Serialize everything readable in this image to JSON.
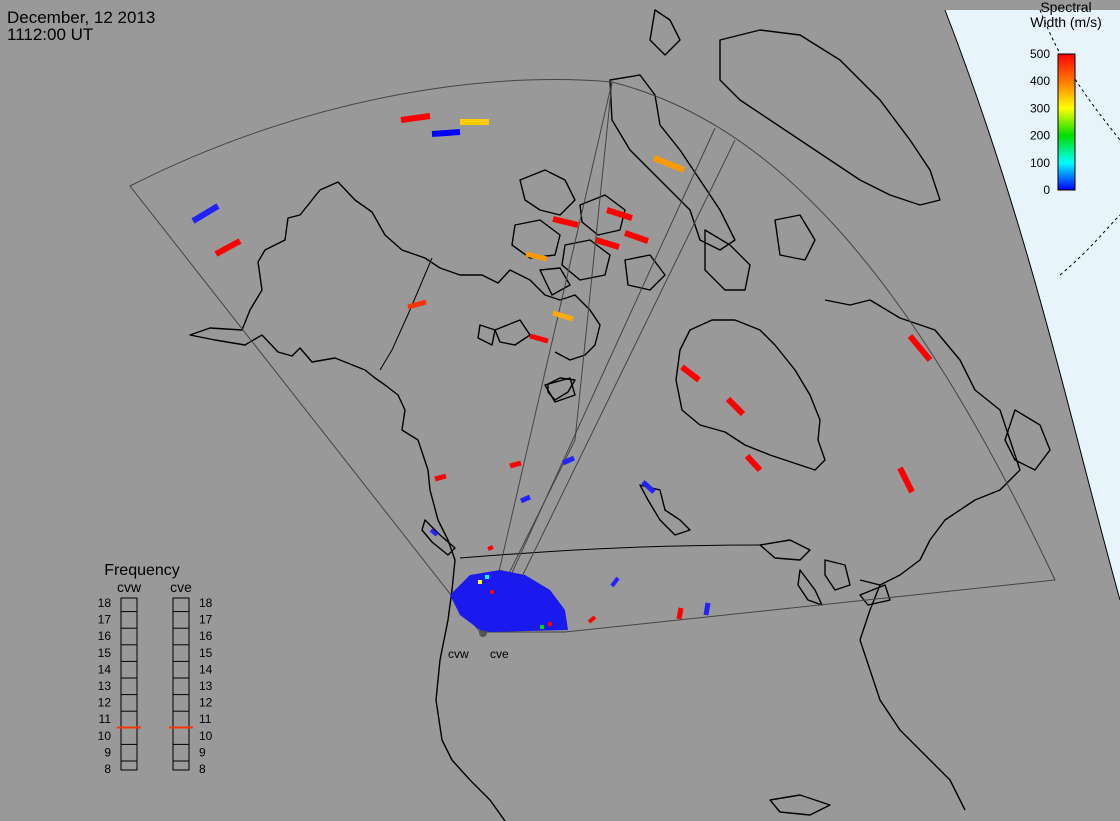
{
  "header": {
    "date": "December, 12 2013",
    "time": "1112:00 UT"
  },
  "colorbar": {
    "title_line1": "Spectral",
    "title_line2": "Width (m/s)",
    "ticks": [
      "500",
      "400",
      "300",
      "200",
      "100",
      "0"
    ],
    "colors": [
      "#ff0000",
      "#ff7a00",
      "#ffff00",
      "#00dd00",
      "#00ffff",
      "#0000ff"
    ]
  },
  "frequency": {
    "title": "Frequency",
    "radar_labels": [
      "cvw",
      "cve"
    ],
    "scale": [
      "18",
      "17",
      "16",
      "15",
      "14",
      "13",
      "12",
      "11",
      "10",
      "9",
      "8"
    ],
    "cvw_value": 10.5,
    "cve_value": 10.5,
    "marker_color": "#ff3300"
  },
  "radars": {
    "cvw_label": "cvw",
    "cve_label": "cve"
  },
  "map": {
    "ocean_color": "#999999",
    "night_color": "#e8f4fc",
    "fov_color": "#444444",
    "coast_color": "#000000"
  }
}
